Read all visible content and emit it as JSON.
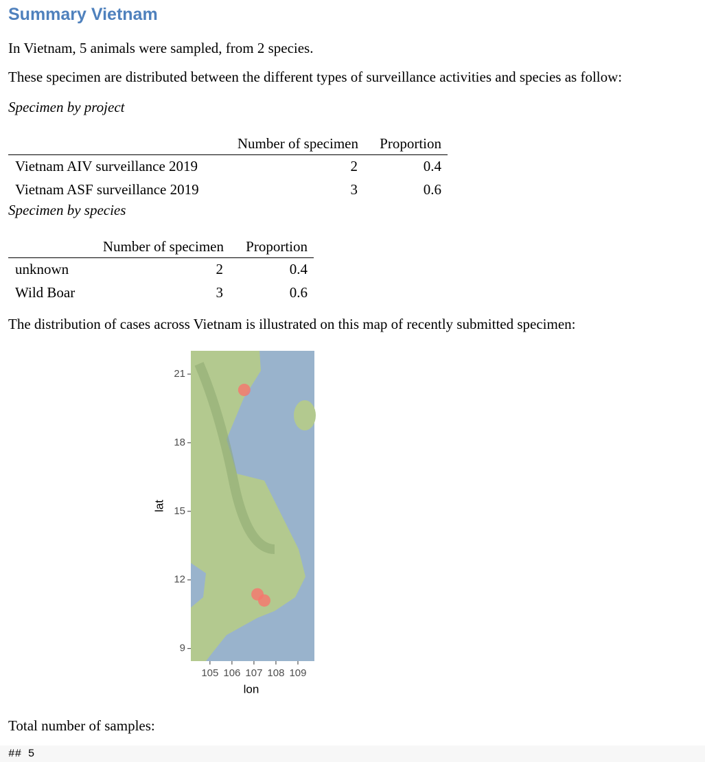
{
  "heading": "Summary Vietnam",
  "intro": "In Vietnam, 5 animals were sampled, from 2 species.",
  "distribution_text": "These specimen are distributed between the different types of surveillance activities and species as follow:",
  "project_table": {
    "caption": "Specimen by project",
    "header": [
      "Number of specimen",
      "Proportion"
    ],
    "rows": [
      [
        "Vietnam AIV surveillance 2019",
        2,
        0.4
      ],
      [
        "Vietnam ASF surveillance 2019",
        3,
        0.6
      ]
    ]
  },
  "species_table": {
    "caption": "Specimen by species",
    "header": [
      "Number of specimen",
      "Proportion"
    ],
    "rows": [
      [
        "unknown",
        2,
        0.4
      ],
      [
        "Wild Boar",
        3,
        0.6
      ]
    ]
  },
  "map_text": "The distribution of cases across Vietnam is illustrated on this map of recently submitted specimen:",
  "map": {
    "type": "scatter",
    "xlabel": "lon",
    "ylabel": "lat",
    "x": [
      106.56,
      107.16,
      107.47
    ],
    "y": [
      20.31,
      11.37,
      11.1
    ],
    "color": "#f8766d",
    "xlim": [
      104.13,
      109.75
    ],
    "ylim": [
      8.45,
      22.02
    ],
    "xticks": [
      105,
      106,
      107,
      108,
      109
    ],
    "yticks": [
      9,
      12,
      15,
      18,
      21
    ]
  },
  "total_text": "Total number of samples:",
  "code_output": "## 5"
}
